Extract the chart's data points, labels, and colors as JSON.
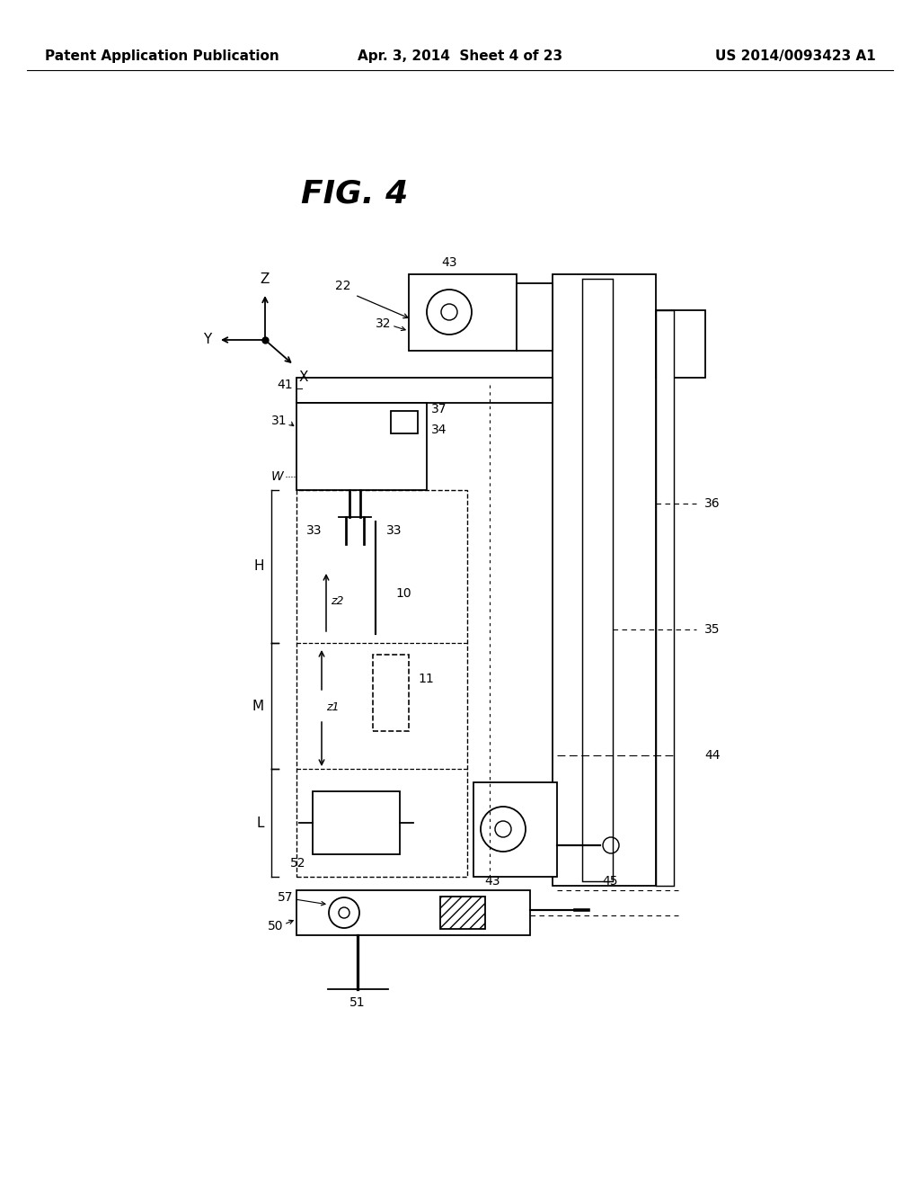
{
  "bg_color": "#ffffff",
  "header_left": "Patent Application Publication",
  "header_center": "Apr. 3, 2014  Sheet 4 of 23",
  "header_right": "US 2014/0093423 A1",
  "fig_title": "FIG. 4",
  "title_fontsize": 26,
  "header_fontsize": 11
}
